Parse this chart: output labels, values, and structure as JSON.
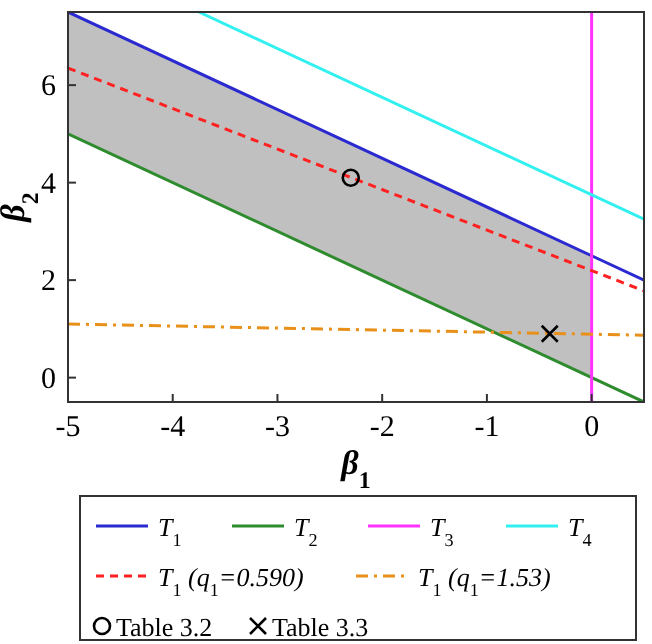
{
  "chart_data": {
    "type": "line",
    "xlabel": "β$_{1}$",
    "ylabel": "β$_{2}$",
    "xlim": [
      -5,
      0.5
    ],
    "ylim": [
      -0.5,
      7.5
    ],
    "xticks": [
      -5,
      -4,
      -3,
      -2,
      -1,
      0
    ],
    "yticks": [
      0,
      2,
      4,
      6
    ],
    "legend": "bottom",
    "series": [
      {
        "name": "T$_{1}$",
        "color": "#2a2ad0",
        "x": [
          -5,
          0,
          0.5
        ],
        "values": [
          7.5,
          2.5,
          2.0
        ],
        "lower": [
          5,
          0,
          null
        ],
        "upper": [
          7.5,
          2.5,
          null
        ]
      },
      {
        "name": "T$_{2}$",
        "color": "#2e8b2e",
        "x": [
          -5,
          0.5
        ],
        "values": [
          5,
          -0.5
        ]
      },
      {
        "name": "T$_{3}$",
        "color": "#ff33ff",
        "x": [
          0,
          0
        ],
        "values": [
          -0.5,
          7.5
        ]
      },
      {
        "name": "T$_{4}$",
        "color": "#33f0f0",
        "x": [
          -3.75,
          0.5
        ],
        "values": [
          7.5,
          3.25
        ]
      },
      {
        "name": "T$_{1}$ (q$_{1}$=0.590)",
        "color": "#ff2020",
        "line_style": "dashed",
        "x": [
          -5,
          0.5
        ],
        "values": [
          6.35,
          1.78
        ]
      },
      {
        "name": "T$_{1}$ (q$_{1}$=1.53)",
        "color": "#e8901a",
        "line_style": "dashdot",
        "x": [
          -5,
          0.5
        ],
        "values": [
          1.1,
          0.87
        ]
      },
      {
        "name": "Table 3.2",
        "type": "scatter",
        "marker": "circle",
        "color": "#000000",
        "x": [
          -2.3
        ],
        "values": [
          4.1
        ]
      },
      {
        "name": "Table 3.3",
        "type": "scatter",
        "marker": "cross",
        "color": "#000000",
        "x": [
          -0.4
        ],
        "values": [
          0.9
        ]
      }
    ]
  }
}
